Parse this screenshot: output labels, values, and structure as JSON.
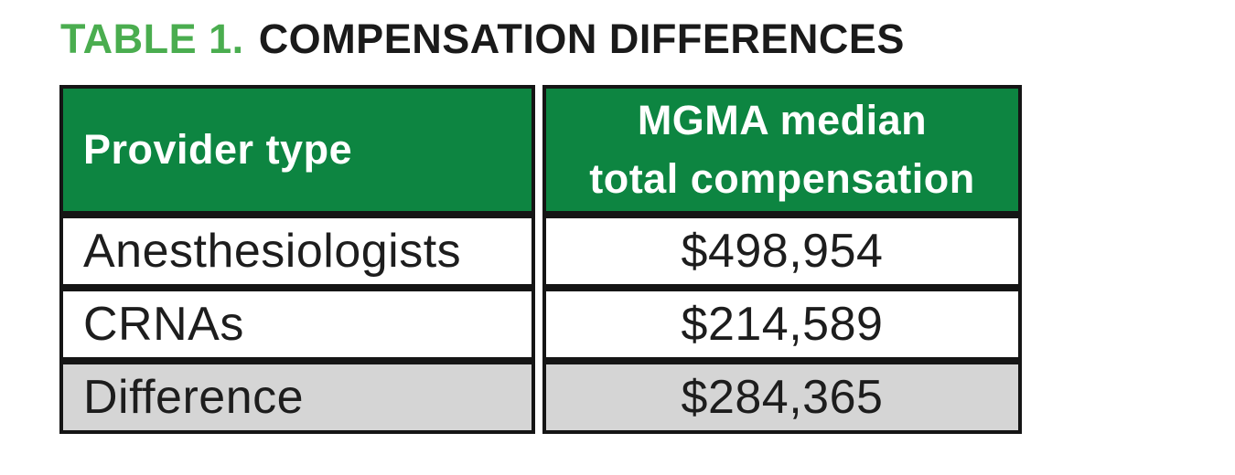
{
  "title": {
    "label": "TABLE 1.",
    "text": "COMPENSATION DIFFERENCES"
  },
  "table": {
    "header": {
      "col1": "Provider type",
      "col2_line1": "MGMA median",
      "col2_line2": "total compensation"
    },
    "rows": [
      {
        "provider": "Anesthesiologists",
        "compensation": "$498,954",
        "highlight": false
      },
      {
        "provider": "CRNAs",
        "compensation": "$214,589",
        "highlight": false
      },
      {
        "provider": "Difference",
        "compensation": "$284,365",
        "highlight": true
      }
    ]
  },
  "chart_data": {
    "type": "table",
    "title": "TABLE 1. COMPENSATION DIFFERENCES",
    "columns": [
      "Provider type",
      "MGMA median total compensation"
    ],
    "rows": [
      [
        "Anesthesiologists",
        "$498,954"
      ],
      [
        "CRNAs",
        "$214,589"
      ],
      [
        "Difference",
        "$284,365"
      ]
    ],
    "values_numeric": [
      498954,
      214589,
      284365
    ],
    "highlighted_row": "Difference"
  },
  "colors": {
    "title_accent": "#4AAD4F",
    "header_bg": "#0D8541",
    "header_text": "#FFFFFF",
    "body_text": "#1D1D1D",
    "border_color": "#151515",
    "highlight_row_bg": "#D5D5D5",
    "page_bg": "#FFFFFF"
  }
}
